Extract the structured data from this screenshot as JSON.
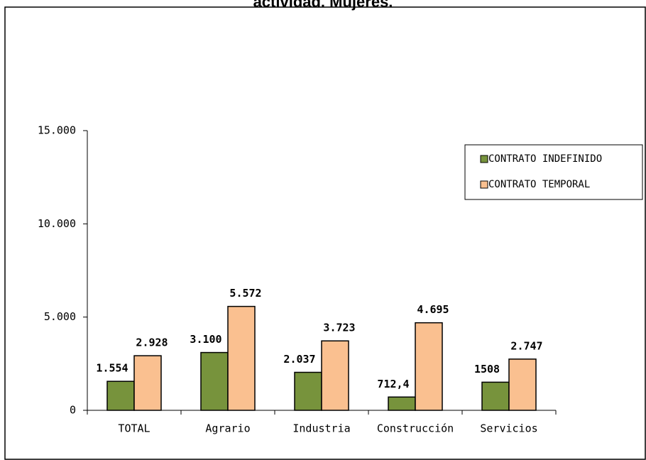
{
  "chart_data": {
    "type": "bar",
    "title": "actividad. Mujeres.",
    "categories": [
      "TOTAL",
      "Agrario",
      "Industria",
      "Construcción",
      "Servicios"
    ],
    "series": [
      {
        "name": "CONTRATO INDEFINIDO",
        "color": "#77933c",
        "values": [
          1554,
          3100,
          2037,
          712.4,
          1508
        ],
        "value_labels": [
          "1.554",
          "3.100",
          "2.037",
          "712,4",
          "1508"
        ]
      },
      {
        "name": "CONTRATO TEMPORAL",
        "color": "#fac090",
        "values": [
          2928,
          5572,
          3723,
          4695,
          2747
        ],
        "value_labels": [
          "2.928",
          "5.572",
          "3.723",
          "4.695",
          "2.747"
        ]
      }
    ],
    "ylim": [
      0,
      15000
    ],
    "yticks": [
      0,
      {
        "value": 5000,
        "label": "5.000"
      },
      {
        "value": 10000,
        "label": "10.000"
      },
      {
        "value": 15000,
        "label": "15.000"
      }
    ],
    "legend": "right"
  }
}
